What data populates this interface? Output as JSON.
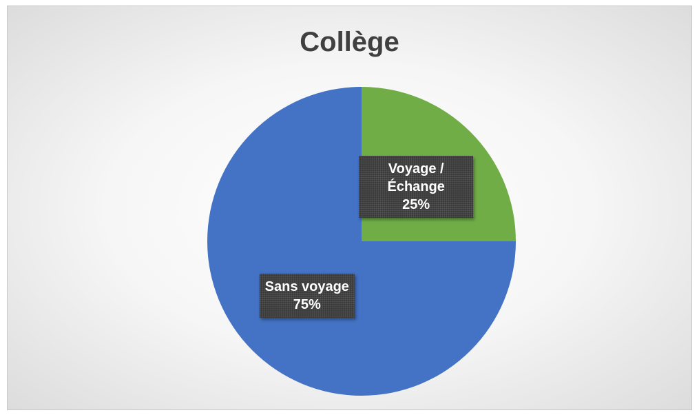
{
  "chart_data": {
    "type": "pie",
    "title": "Collège",
    "categories": [
      "Voyage / Échange",
      "Sans voyage"
    ],
    "values": [
      25,
      75
    ],
    "value_labels": [
      "25%",
      "75%"
    ],
    "colors": [
      "#70ad47",
      "#4472c4"
    ]
  }
}
